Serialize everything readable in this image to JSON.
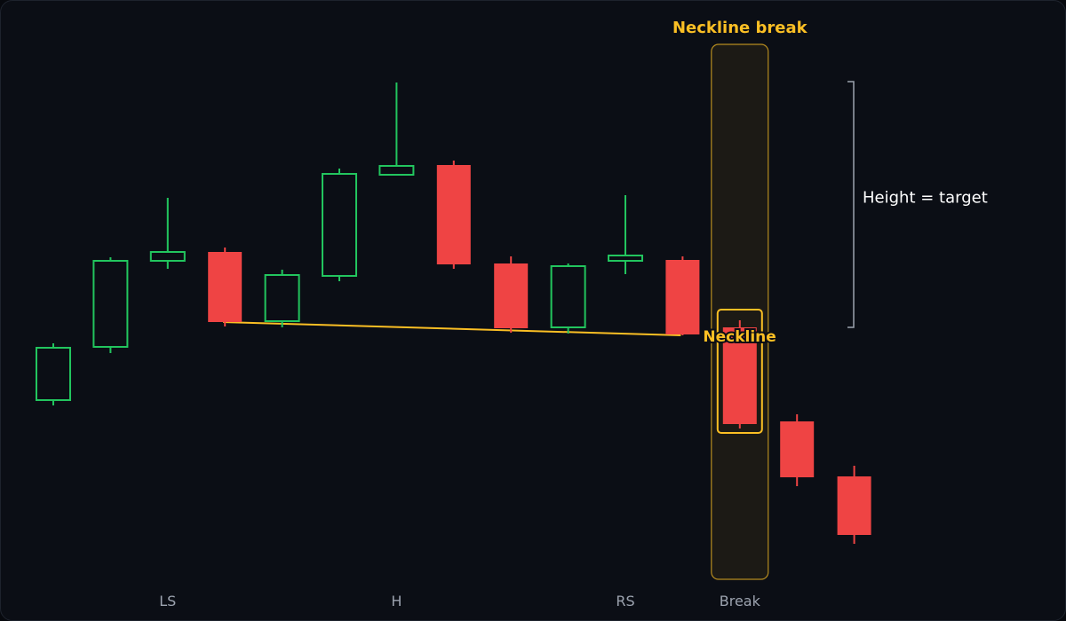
{
  "chart_data": {
    "type": "candlestick",
    "title": "",
    "xlabel": "",
    "ylabel": "",
    "colors": {
      "background": "#0b0e15",
      "bullish": "#22c55e",
      "bearish": "#ef4444",
      "accent": "#fbbf24",
      "highlight_fill": "#1c1a15",
      "muted_text": "#9ca3af",
      "annotation_text": "#ffffff",
      "bracket": "#9ca3af"
    },
    "candles": [
      {
        "open": 230,
        "close": 289,
        "high": 294,
        "low": 224
      },
      {
        "open": 290,
        "close": 387,
        "high": 391,
        "low": 283
      },
      {
        "open": 387,
        "close": 397,
        "high": 458,
        "low": 378
      },
      {
        "open": 397,
        "close": 318,
        "high": 402,
        "low": 313
      },
      {
        "open": 319,
        "close": 371,
        "high": 377,
        "low": 312
      },
      {
        "open": 370,
        "close": 485,
        "high": 491,
        "low": 364
      },
      {
        "open": 484,
        "close": 494,
        "high": 588,
        "low": 483
      },
      {
        "open": 495,
        "close": 383,
        "high": 500,
        "low": 378
      },
      {
        "open": 384,
        "close": 311,
        "high": 392,
        "low": 306
      },
      {
        "open": 312,
        "close": 381,
        "high": 384,
        "low": 305
      },
      {
        "open": 387,
        "close": 393,
        "high": 461,
        "low": 372
      },
      {
        "open": 388,
        "close": 304,
        "high": 392,
        "low": 303
      },
      {
        "open": 312,
        "close": 203,
        "high": 320,
        "low": 198
      },
      {
        "open": 206,
        "close": 143,
        "high": 214,
        "low": 133
      },
      {
        "open": 144,
        "close": 78,
        "high": 156,
        "low": 68
      }
    ],
    "neckline": {
      "start_index": 3,
      "end_index": 11,
      "start_value": 318,
      "end_value": 303,
      "label": "Neckline"
    },
    "break_index": 12,
    "break_label": "Neckline break",
    "height_annotation": {
      "top": 589,
      "bottom": 312,
      "label": "Height = target"
    },
    "x_labels": [
      {
        "index": 2,
        "text": "LS"
      },
      {
        "index": 6,
        "text": "H"
      },
      {
        "index": 10,
        "text": "RS"
      },
      {
        "index": 12,
        "text": "Break"
      }
    ],
    "ylim": [
      0,
      680
    ]
  }
}
